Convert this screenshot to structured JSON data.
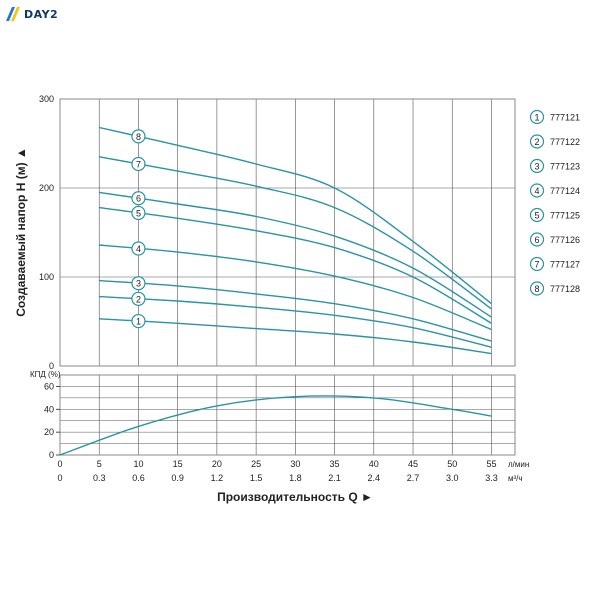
{
  "brand": {
    "name": "DAY2",
    "colors": {
      "stripe_blue": "#1f78c8",
      "stripe_yellow": "#f2c418",
      "text": "#0d3b66"
    }
  },
  "colors": {
    "curve": "#2a93a6",
    "grid": "#555555",
    "frame": "#8a8a8a",
    "label_ring": "#2a93a6"
  },
  "chart_data": [
    {
      "type": "line",
      "title": "",
      "ylabel": "Создаваемый напор H (м) ▲",
      "xlabel": "",
      "ylim": [
        0,
        300
      ],
      "y_ticks": [
        "0",
        "100",
        "200",
        "300"
      ],
      "x_range_lpm": [
        0,
        58
      ],
      "x_grid_lpm": [
        5,
        10,
        15,
        20,
        25,
        30,
        35,
        40,
        45,
        50,
        55
      ],
      "grid": true,
      "legend": "right",
      "series": [
        {
          "name": "777121",
          "curve_label": "1",
          "x": [
            5,
            15,
            25,
            35,
            45,
            55
          ],
          "y": [
            53,
            48,
            42,
            36,
            27,
            14
          ]
        },
        {
          "name": "777122",
          "curve_label": "2",
          "x": [
            5,
            15,
            25,
            35,
            45,
            55
          ],
          "y": [
            78,
            73,
            66,
            57,
            43,
            21
          ]
        },
        {
          "name": "777123",
          "curve_label": "3",
          "x": [
            5,
            15,
            25,
            35,
            45,
            55
          ],
          "y": [
            96,
            90,
            81,
            70,
            53,
            28
          ]
        },
        {
          "name": "777124",
          "curve_label": "4",
          "x": [
            5,
            15,
            25,
            35,
            45,
            55
          ],
          "y": [
            136,
            128,
            117,
            101,
            77,
            41
          ]
        },
        {
          "name": "777125",
          "curve_label": "5",
          "x": [
            5,
            15,
            25,
            35,
            45,
            55
          ],
          "y": [
            178,
            166,
            152,
            133,
            100,
            48
          ]
        },
        {
          "name": "777126",
          "curve_label": "6",
          "x": [
            5,
            15,
            25,
            35,
            45,
            55
          ],
          "y": [
            195,
            182,
            168,
            146,
            110,
            55
          ]
        },
        {
          "name": "777127",
          "curve_label": "7",
          "x": [
            5,
            15,
            25,
            35,
            45,
            55
          ],
          "y": [
            235,
            219,
            202,
            178,
            129,
            64
          ]
        },
        {
          "name": "777128",
          "curve_label": "8",
          "x": [
            5,
            15,
            25,
            35,
            45,
            55
          ],
          "y": [
            268,
            248,
            227,
            200,
            140,
            70
          ]
        }
      ]
    },
    {
      "type": "line",
      "title": "",
      "ylabel": "КПД (%)",
      "ylim": [
        0,
        70
      ],
      "y_ticks": [
        "0",
        "20",
        "40",
        "60"
      ],
      "grid": true,
      "series": [
        {
          "name": "",
          "x": [
            0,
            10,
            20,
            30,
            40,
            50,
            55
          ],
          "y": [
            0,
            25,
            43,
            51,
            50,
            40,
            34
          ]
        }
      ],
      "x_axis_lpm": {
        "ticks": [
          "0",
          "5",
          "10",
          "15",
          "20",
          "25",
          "30",
          "35",
          "40",
          "45",
          "50",
          "55"
        ],
        "unit": "л/мин"
      },
      "x_axis_m3h": {
        "ticks": [
          "0",
          "0.3",
          "0.6",
          "0.9",
          "1.2",
          "1.5",
          "1.8",
          "2.1",
          "2.4",
          "2.7",
          "3.0",
          "3.3"
        ],
        "unit": "м³/ч"
      },
      "xlabel": "Производительность Q ►"
    }
  ]
}
